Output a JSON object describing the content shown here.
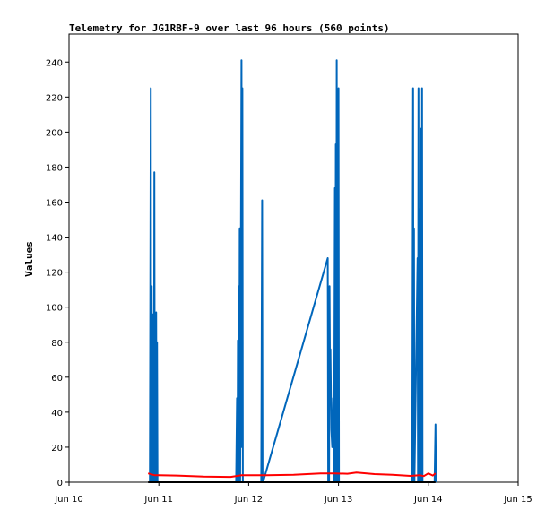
{
  "chart_data": {
    "type": "line",
    "title": "Telemetry for JG1RBF-9 over last 96 hours (560 points)",
    "ylabel": "Values",
    "xlabel": "",
    "xlim": [
      0,
      5
    ],
    "ylim": [
      0,
      256
    ],
    "x_ticks": [
      {
        "label": "Jun 10",
        "value": 0
      },
      {
        "label": "Jun 11",
        "value": 1
      },
      {
        "label": "Jun 12",
        "value": 2
      },
      {
        "label": "Jun 13",
        "value": 3
      },
      {
        "label": "Jun 14",
        "value": 4
      },
      {
        "label": "Jun 15",
        "value": 5
      }
    ],
    "y_ticks": [
      0,
      20,
      40,
      60,
      80,
      100,
      120,
      140,
      160,
      180,
      200,
      220,
      240
    ],
    "grid": false,
    "series": [
      {
        "color": "#0066bb",
        "points": [
          [
            0.9,
            0
          ],
          [
            0.91,
            225
          ],
          [
            0.915,
            0
          ],
          [
            0.92,
            112
          ],
          [
            0.925,
            20
          ],
          [
            0.93,
            48
          ],
          [
            0.935,
            0
          ],
          [
            0.94,
            96
          ],
          [
            0.945,
            10
          ],
          [
            0.95,
            177
          ],
          [
            0.955,
            0
          ],
          [
            0.96,
            80
          ],
          [
            0.965,
            5
          ],
          [
            0.97,
            97
          ],
          [
            0.975,
            0
          ],
          [
            0.98,
            80
          ],
          [
            0.985,
            0
          ],
          [
            1.86,
            0
          ],
          [
            1.87,
            48
          ],
          [
            1.875,
            0
          ],
          [
            1.88,
            81
          ],
          [
            1.885,
            0
          ],
          [
            1.89,
            112
          ],
          [
            1.895,
            10
          ],
          [
            1.9,
            145
          ],
          [
            1.905,
            0
          ],
          [
            1.92,
            241
          ],
          [
            1.925,
            20
          ],
          [
            1.93,
            225
          ],
          [
            1.935,
            0
          ],
          [
            2.14,
            0
          ],
          [
            2.15,
            161
          ],
          [
            2.155,
            0
          ],
          [
            2.16,
            0
          ],
          [
            2.88,
            128
          ],
          [
            2.885,
            0
          ],
          [
            2.89,
            96
          ],
          [
            2.895,
            0
          ],
          [
            2.9,
            112
          ],
          [
            2.905,
            64
          ],
          [
            2.91,
            76
          ],
          [
            2.92,
            30
          ],
          [
            2.93,
            20
          ],
          [
            2.94,
            48
          ],
          [
            2.95,
            0
          ],
          [
            2.96,
            168
          ],
          [
            2.965,
            0
          ],
          [
            2.97,
            193
          ],
          [
            2.975,
            0
          ],
          [
            2.98,
            241
          ],
          [
            2.985,
            0
          ],
          [
            2.99,
            208
          ],
          [
            2.995,
            0
          ],
          [
            3.0,
            225
          ],
          [
            3.005,
            0
          ],
          [
            3.82,
            0
          ],
          [
            3.83,
            225
          ],
          [
            3.835,
            0
          ],
          [
            3.84,
            145
          ],
          [
            3.845,
            0
          ],
          [
            3.88,
            128
          ],
          [
            3.885,
            0
          ],
          [
            3.89,
            225
          ],
          [
            3.895,
            0
          ],
          [
            3.9,
            64
          ],
          [
            3.905,
            156
          ],
          [
            3.91,
            112
          ],
          [
            3.915,
            0
          ],
          [
            3.92,
            202
          ],
          [
            3.925,
            0
          ],
          [
            3.93,
            225
          ],
          [
            3.935,
            0
          ],
          [
            3.94,
            0
          ],
          [
            4.07,
            0
          ],
          [
            4.08,
            33
          ],
          [
            4.085,
            0
          ]
        ]
      },
      {
        "color": "#ff0000",
        "points": [
          [
            0.88,
            5
          ],
          [
            0.95,
            4
          ],
          [
            1.0,
            4
          ],
          [
            1.2,
            3.8
          ],
          [
            1.5,
            3.2
          ],
          [
            1.8,
            3
          ],
          [
            1.92,
            4
          ],
          [
            2.0,
            4
          ],
          [
            2.2,
            4
          ],
          [
            2.5,
            4.2
          ],
          [
            2.8,
            5
          ],
          [
            2.95,
            5
          ],
          [
            3.1,
            4.8
          ],
          [
            3.2,
            5.5
          ],
          [
            3.4,
            4.6
          ],
          [
            3.6,
            4.2
          ],
          [
            3.8,
            3.6
          ],
          [
            3.9,
            4
          ],
          [
            3.95,
            3.5
          ],
          [
            4.0,
            5
          ],
          [
            4.05,
            3.8
          ],
          [
            4.08,
            5
          ]
        ]
      },
      {
        "color": "#000000",
        "points": [
          [
            0.88,
            0
          ],
          [
            4.08,
            0
          ]
        ]
      }
    ]
  }
}
